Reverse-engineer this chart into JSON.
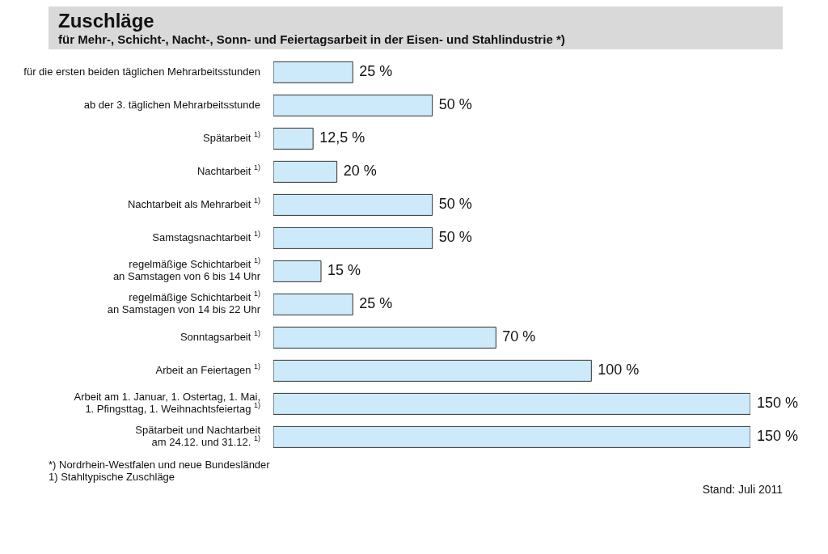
{
  "chart_data": {
    "type": "bar",
    "orientation": "horizontal",
    "title": "Zuschläge",
    "subtitle": "für Mehr-, Schicht-, Nacht-, Sonn- und Feiertagsarbeit in der Eisen- und Stahlindustrie *)",
    "categories": [
      "für die ersten beiden täglichen Mehrarbeitsstunden",
      "ab der 3. täglichen Mehrarbeitsstunde",
      "Spätarbeit $^{1)}$",
      "Nachtarbeit $^{1)}$",
      "Nachtarbeit als Mehrarbeit $^{1)}$",
      "Samstagsnachtarbeit $^{1)}$",
      "regelmäßige Schichtarbeit $^{1)}$\nan Samstagen von 6 bis 14 Uhr",
      "regelmäßige Schichtarbeit $^{1)}$\nan Samstagen von 14 bis 22 Uhr",
      "Sonntagsarbeit $^{1)}$",
      "Arbeit an Feiertagen $^{1)}$",
      "Arbeit am 1. Januar, 1. Ostertag, 1. Mai,\n1. Pfingsttag, 1. Weihnachtsfeiertag $^{1)}$",
      "Spätarbeit und Nachtarbeit\nam 24.12. und 31.12. $^{1)}$"
    ],
    "values": [
      25,
      50,
      12.5,
      20,
      50,
      50,
      15,
      25,
      70,
      100,
      150,
      150
    ],
    "value_labels": [
      "25 %",
      "50 %",
      "12,5 %",
      "20 %",
      "50 %",
      "50 %",
      "15 %",
      "25 %",
      "70 %",
      "100 %",
      "150 %",
      "150 %"
    ],
    "color": "#cdeafa",
    "annotations": [
      "*)  Nordrhein-Westfalen und neue Bundesländer",
      "1) Stahltypische Zuschläge",
      "Stand: Juli 2011"
    ]
  }
}
